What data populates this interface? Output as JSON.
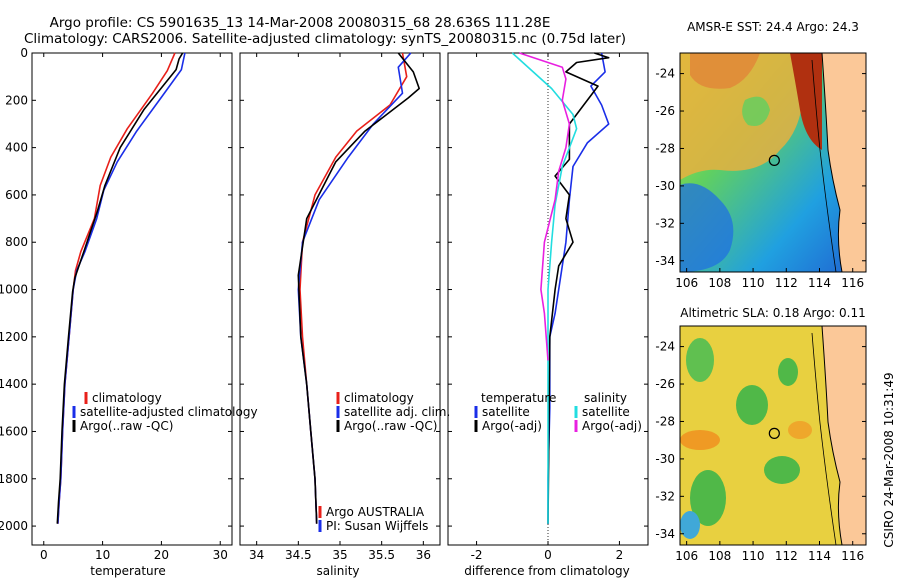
{
  "header": {
    "line1": "Argo profile: CS 5901635_13 14-Mar-2008 20080315_68 28.636S 111.28E",
    "line2": "Climatology: CARS2006. Satellite-adjusted climatology: synTS_20080315.nc (0.75d later)"
  },
  "side_label": "CSIRO 24-Mar-2008 10:31:49",
  "colors": {
    "climatology": "#e8201a",
    "satellite": "#1a2ee8",
    "argo": "#000000",
    "salinity_sat": "#22dde0",
    "salinity_argo": "#e820e0",
    "land": "#fbc898"
  },
  "chart_data": [
    {
      "type": "line",
      "xlabel": "temperature",
      "ylim": [
        2080,
        0
      ],
      "xlim": [
        -2,
        32
      ],
      "xticks": [
        "0",
        "10",
        "20",
        "30"
      ],
      "yticks": [
        "0",
        "200",
        "400",
        "600",
        "800",
        "1000",
        "1200",
        "1400",
        "1600",
        "1800",
        "2000"
      ],
      "legend": [
        "climatology",
        "satellite-adjusted climatology",
        "Argo(..raw -QC)"
      ],
      "series": [
        {
          "name": "climatology",
          "x": [
            22.3,
            21.0,
            18.5,
            14.2,
            11.4,
            9.6,
            8.6,
            6.3,
            5.4,
            5.0,
            4.3,
            3.6,
            3.2,
            2.9,
            2.6,
            2.4
          ],
          "y": [
            0,
            75,
            170,
            320,
            440,
            560,
            700,
            840,
            920,
            1000,
            1200,
            1400,
            1600,
            1800,
            1900,
            1990
          ]
        },
        {
          "name": "satellite-adjusted climatology",
          "x": [
            24.0,
            23.4,
            20.2,
            15.8,
            12.5,
            10.2,
            9.0,
            7.0,
            5.6,
            5.0,
            4.3,
            3.6,
            3.2,
            2.9,
            2.6,
            2.4
          ],
          "y": [
            0,
            70,
            180,
            330,
            460,
            580,
            700,
            840,
            920,
            1000,
            1200,
            1400,
            1600,
            1800,
            1900,
            1990
          ]
        },
        {
          "name": "Argo(..raw -QC)",
          "x": [
            23.6,
            23.0,
            22.5,
            17.0,
            13.0,
            10.4,
            9.1,
            6.8,
            5.3,
            4.9,
            4.2,
            3.5,
            3.1,
            2.8,
            2.5,
            2.3
          ],
          "y": [
            0,
            25,
            70,
            240,
            400,
            560,
            670,
            840,
            950,
            1010,
            1200,
            1400,
            1600,
            1800,
            1900,
            1990
          ]
        }
      ]
    },
    {
      "type": "line",
      "xlabel": "salinity",
      "ylim": [
        2080,
        0
      ],
      "xlim": [
        33.8,
        36.2
      ],
      "xticks": [
        "34",
        "34.5",
        "35",
        "35.5",
        "36"
      ],
      "legend": [
        "climatology",
        "satellite adj. clim.",
        "Argo(..raw -QC)"
      ],
      "annotations": [
        "Argo AUSTRALIA",
        "PI: Susan Wijffels"
      ],
      "series": [
        {
          "name": "climatology",
          "x": [
            35.75,
            35.8,
            35.6,
            35.2,
            34.95,
            34.7,
            34.55,
            34.52,
            34.55,
            34.6,
            34.65,
            34.7,
            34.72
          ],
          "y": [
            0,
            100,
            220,
            330,
            440,
            600,
            800,
            1000,
            1200,
            1400,
            1600,
            1800,
            1990
          ]
        },
        {
          "name": "satellite adj. clim.",
          "x": [
            35.85,
            35.7,
            35.75,
            35.4,
            35.1,
            34.75,
            34.55,
            34.5,
            34.53,
            34.6,
            34.65,
            34.7,
            34.72
          ],
          "y": [
            0,
            60,
            170,
            300,
            440,
            620,
            800,
            1000,
            1200,
            1400,
            1600,
            1800,
            1990
          ]
        },
        {
          "name": "Argo(..raw -QC)",
          "x": [
            35.7,
            35.88,
            35.95,
            35.82,
            35.3,
            34.95,
            34.6,
            34.5,
            34.53,
            34.6,
            34.65,
            34.7,
            34.72
          ],
          "y": [
            0,
            80,
            150,
            190,
            330,
            460,
            700,
            940,
            1200,
            1400,
            1600,
            1800,
            1990
          ]
        }
      ]
    },
    {
      "type": "line",
      "xlabel": "difference from climatology",
      "ylim": [
        2080,
        0
      ],
      "xlim": [
        -2.8,
        2.8
      ],
      "xticks": [
        "-2",
        "0",
        "2"
      ],
      "legend_left": [
        "temperature",
        "satellite",
        "Argo(-adj)"
      ],
      "legend_right": [
        "salinity",
        "satellite",
        "Argo(-adj)"
      ],
      "series": [
        {
          "name": "satellite (temperature)",
          "x": [
            1.5,
            1.6,
            1.2,
            1.5,
            1.7,
            1.1,
            0.7,
            0.6,
            0.5,
            0.4,
            0.3,
            0.2,
            0.05,
            0.05,
            0.0,
            0.0
          ],
          "y": [
            0,
            80,
            140,
            220,
            300,
            380,
            480,
            620,
            800,
            900,
            1000,
            1100,
            1200,
            1500,
            1800,
            1990
          ]
        },
        {
          "name": "Argo(-adj) (temperature)",
          "x": [
            1.3,
            1.7,
            0.8,
            0.5,
            1.4,
            1.0,
            0.6,
            0.6,
            0.2,
            0.6,
            0.5,
            0.7,
            0.3,
            0.2,
            0.05,
            0.0
          ],
          "y": [
            0,
            20,
            40,
            80,
            140,
            220,
            300,
            450,
            520,
            600,
            700,
            800,
            900,
            1000,
            1200,
            1990
          ]
        },
        {
          "name": "satellite (salinity)",
          "x": [
            -1.0,
            0.1,
            0.7,
            0.8,
            0.4,
            0.2,
            0.1,
            0.0,
            0.0,
            0.0
          ],
          "y": [
            0,
            150,
            260,
            320,
            480,
            640,
            800,
            1000,
            1500,
            1990
          ]
        },
        {
          "name": "Argo(-adj) (salinity)",
          "x": [
            -0.8,
            0.4,
            0.5,
            0.4,
            0.6,
            0.5,
            0.3,
            0.2,
            -0.1,
            -0.2,
            -0.1,
            -0.05,
            0.0
          ],
          "y": [
            0,
            60,
            110,
            200,
            300,
            400,
            500,
            620,
            800,
            1000,
            1100,
            1200,
            1300
          ]
        }
      ]
    },
    {
      "type": "heatmap",
      "title": "AMSR-E SST: 24.4 Argo: 24.3",
      "xlim": [
        105.6,
        116.8
      ],
      "ylim": [
        -34.6,
        -22.9
      ],
      "xticks": [
        "106",
        "108",
        "110",
        "112",
        "114",
        "116"
      ],
      "yticks": [
        "-24",
        "-26",
        "-28",
        "-30",
        "-32",
        "-34"
      ],
      "float_position": {
        "lon": 111.28,
        "lat": -28.636
      }
    },
    {
      "type": "heatmap",
      "title": "Altimetric SLA: 0.18 Argo: 0.11",
      "xlim": [
        105.6,
        116.8
      ],
      "ylim": [
        -34.6,
        -22.9
      ],
      "xticks": [
        "106",
        "108",
        "110",
        "112",
        "114",
        "116"
      ],
      "yticks": [
        "-24",
        "-26",
        "-28",
        "-30",
        "-32",
        "-34"
      ],
      "float_position": {
        "lon": 111.28,
        "lat": -28.636
      }
    }
  ]
}
